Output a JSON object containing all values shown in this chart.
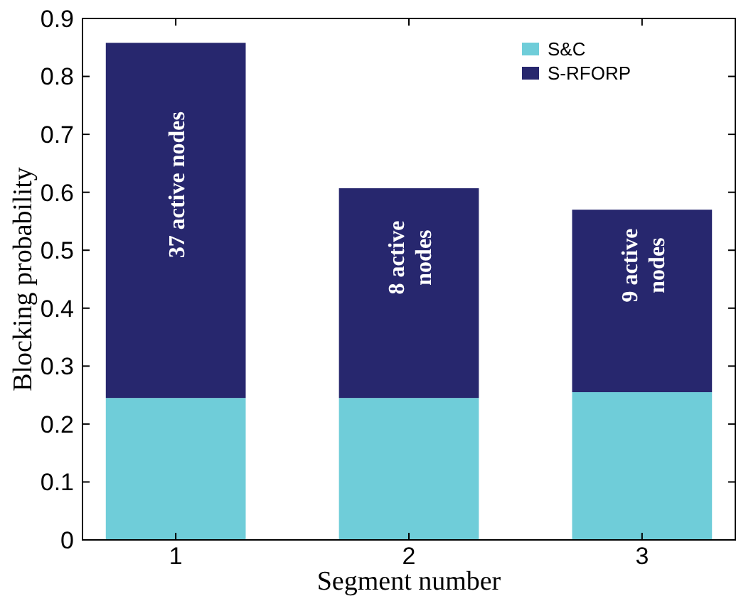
{
  "chart_data": {
    "type": "bar",
    "stacked": true,
    "xlabel": "Segment number",
    "ylabel": "Blocking probability",
    "categories": [
      "1",
      "2",
      "3"
    ],
    "series": [
      {
        "name": "S&C",
        "color": "#6fcdd9",
        "values": [
          0.245,
          0.245,
          0.255
        ]
      },
      {
        "name": "S-RFORP",
        "color": "#27276e",
        "values": [
          0.613,
          0.362,
          0.315
        ]
      }
    ],
    "ylim": [
      0,
      0.9
    ],
    "yticks": [
      0,
      0.1,
      0.2,
      0.3,
      0.4,
      0.5,
      0.6,
      0.7,
      0.8,
      0.9
    ],
    "grid": false,
    "legend": "top right",
    "annotations": [
      "37 active nodes",
      "8 active\nnodes",
      "9 active\nnodes"
    ]
  }
}
